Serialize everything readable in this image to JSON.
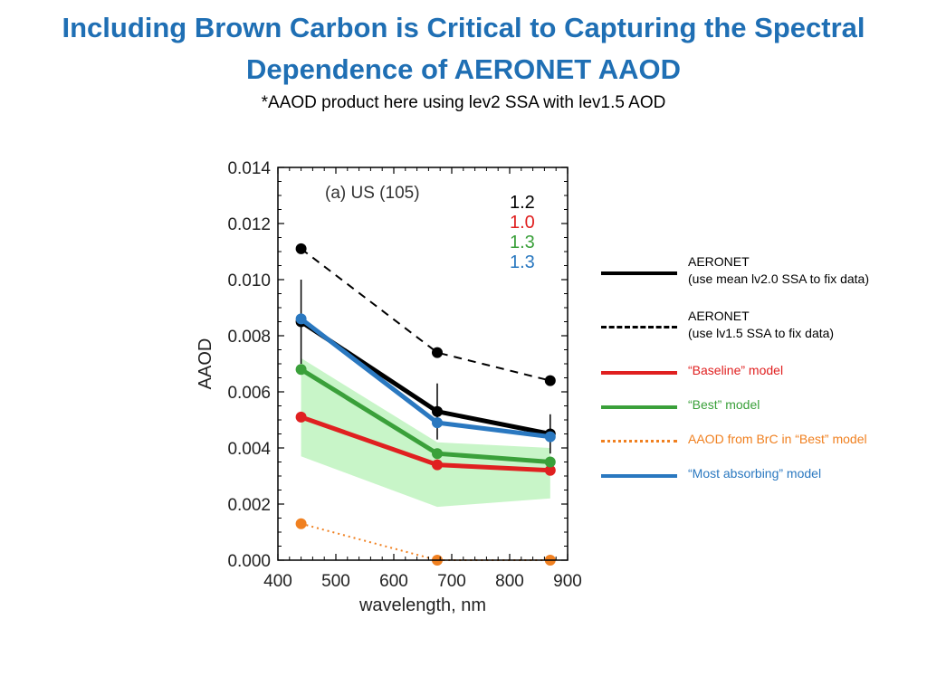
{
  "slide": {
    "title_line1": "Including Brown Carbon is Critical to Capturing the Spectral",
    "title_line2": "Dependence of AERONET AAOD",
    "subtitle": "*AAOD product here using lev2 SSA with lev1.5 AOD"
  },
  "chart_data": {
    "type": "line",
    "panel_label": "(a) US (105)",
    "xlabel": "wavelength, nm",
    "ylabel": "AAOD",
    "xlim": [
      400,
      900
    ],
    "ylim": [
      0,
      0.014
    ],
    "xticks": [
      "400",
      "500",
      "600",
      "700",
      "800",
      "900"
    ],
    "yticks": [
      "0.000",
      "0.002",
      "0.004",
      "0.006",
      "0.008",
      "0.010",
      "0.012",
      "0.014"
    ],
    "x": [
      440,
      675,
      870
    ],
    "band": {
      "name": "“Best” model range",
      "lower": [
        0.0037,
        0.0019,
        0.0022
      ],
      "upper": [
        0.0072,
        0.0042,
        0.004
      ],
      "color": "#c8f5c8"
    },
    "series": [
      {
        "key": "aeronet_lv20",
        "values": [
          0.0085,
          0.0053,
          0.0045
        ],
        "color": "#000000",
        "style": "solid",
        "errors": [
          0.0015,
          0.001,
          0.0007
        ]
      },
      {
        "key": "aeronet_lv15",
        "values": [
          0.0111,
          0.0074,
          0.0064
        ],
        "color": "#000000",
        "style": "dashed"
      },
      {
        "key": "baseline",
        "values": [
          0.0051,
          0.0034,
          0.0032
        ],
        "color": "#e02020",
        "style": "solid"
      },
      {
        "key": "best",
        "values": [
          0.0068,
          0.0038,
          0.0035
        ],
        "color": "#3aa03a",
        "style": "solid"
      },
      {
        "key": "brc_best",
        "values": [
          0.0013,
          0.0,
          0.0
        ],
        "color": "#f08020",
        "style": "dotted"
      },
      {
        "key": "most_absorbing",
        "values": [
          0.0086,
          0.0049,
          0.0044
        ],
        "color": "#2a78c0",
        "style": "solid"
      }
    ],
    "angstrom_labels": [
      {
        "text": "1.2",
        "color": "#000000"
      },
      {
        "text": "1.0",
        "color": "#e02020"
      },
      {
        "text": "1.3",
        "color": "#3aa03a"
      },
      {
        "text": "1.3",
        "color": "#2a78c0"
      }
    ],
    "legend": [
      {
        "line1": "AERONET",
        "line2": "(use mean lv2.0 SSA to fix data)",
        "color": "#000000",
        "style": "solid",
        "text_color": "#000000"
      },
      {
        "line1": "AERONET",
        "line2": "(use lv1.5 SSA to fix data)",
        "color": "#000000",
        "style": "dashed",
        "text_color": "#000000"
      },
      {
        "line1": "“Baseline” model",
        "line2": "",
        "color": "#e02020",
        "style": "solid",
        "text_color": "#e02020"
      },
      {
        "line1": "“Best” model",
        "line2": "",
        "color": "#3aa03a",
        "style": "solid",
        "text_color": "#3aa03a"
      },
      {
        "line1": "AAOD from BrC in “Best” model",
        "line2": "",
        "color": "#f08020",
        "style": "dotted",
        "text_color": "#f08020"
      },
      {
        "line1": "“Most absorbing” model",
        "line2": "",
        "color": "#2a78c0",
        "style": "solid",
        "text_color": "#2a78c0"
      }
    ]
  }
}
